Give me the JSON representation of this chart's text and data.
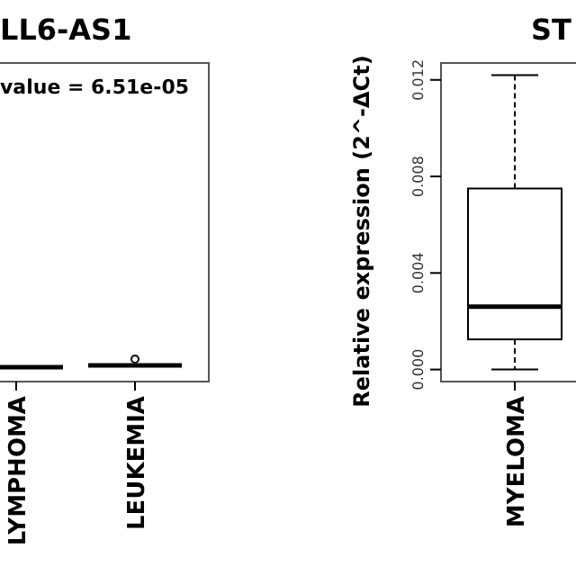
{
  "chart_data": [
    {
      "type": "other",
      "title": "LL6-AS1",
      "annotations": [
        "value = 6.51e-05"
      ],
      "categories": [
        "LYMPHOMA",
        "LEUKEMIA"
      ]
    },
    {
      "type": "box",
      "title": "ST",
      "ylabel": "Relative  expression (2^-ΔCt)",
      "categories": [
        "MYELOMA"
      ],
      "ylim": [
        -0.0005,
        0.0127
      ],
      "yticks": [
        {
          "value": 0,
          "label": "0.000"
        },
        {
          "value": 0.004,
          "label": "0.004"
        },
        {
          "value": 0.008,
          "label": "0.008"
        },
        {
          "value": 0.012,
          "label": "0.012"
        }
      ],
      "boxes": [
        {
          "low": 0,
          "q1": 0.00125,
          "median": 0.0026,
          "q3": 0.0075,
          "high": 0.0122
        }
      ]
    }
  ]
}
